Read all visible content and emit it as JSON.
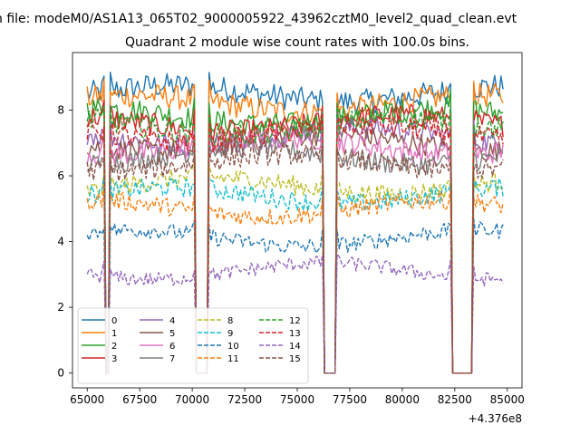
{
  "figure": {
    "suptitle": "n file: modeM0/AS1A13_065T02_9000005922_43962cztM0_level2_quad_clean.evt"
  },
  "chart_data": {
    "type": "line",
    "title": "Quadrant 2 module wise count rates with 100.0s bins.",
    "xlabel": "",
    "ylabel": "",
    "x_offset_label": "+4.376e8",
    "xlim": [
      64300,
      85700
    ],
    "ylim": [
      -0.45,
      9.75
    ],
    "xticks": [
      65000,
      67500,
      70000,
      72500,
      75000,
      77500,
      80000,
      82500,
      85000
    ],
    "xtick_labels": [
      "65000",
      "67500",
      "70000",
      "72500",
      "75000",
      "77500",
      "80000",
      "82500",
      "85000"
    ],
    "yticks": [
      0,
      2,
      4,
      6,
      8
    ],
    "ytick_labels": [
      "0",
      "2",
      "4",
      "6",
      "8"
    ],
    "grid": false,
    "legend_position": "lower-left",
    "legend_columns": 4,
    "x_range": [
      65000,
      84800
    ],
    "bin_s": 100,
    "gaps": [
      [
        65900,
        66050
      ],
      [
        70200,
        70700
      ],
      [
        76300,
        76800
      ],
      [
        82400,
        83300
      ]
    ],
    "series": [
      {
        "name": "0",
        "style": "solid",
        "color": "#1f77b4",
        "level": 8.5
      },
      {
        "name": "1",
        "style": "solid",
        "color": "#ff7f0e",
        "level": 8.2
      },
      {
        "name": "2",
        "style": "solid",
        "color": "#2ca02c",
        "level": 7.8
      },
      {
        "name": "3",
        "style": "solid",
        "color": "#d62728",
        "level": 7.6
      },
      {
        "name": "4",
        "style": "solid",
        "color": "#9467bd",
        "level": 7.2
      },
      {
        "name": "5",
        "style": "solid",
        "color": "#8c564b",
        "level": 7.0
      },
      {
        "name": "6",
        "style": "solid",
        "color": "#e377c2",
        "level": 6.9
      },
      {
        "name": "7",
        "style": "solid",
        "color": "#7f7f7f",
        "level": 6.6
      },
      {
        "name": "8",
        "style": "dashed",
        "color": "#bcbd22",
        "level": 5.7
      },
      {
        "name": "9",
        "style": "dashed",
        "color": "#17becf",
        "level": 5.4
      },
      {
        "name": "10",
        "style": "dashed",
        "color": "#1f77b4",
        "level": 4.1
      },
      {
        "name": "11",
        "style": "dashed",
        "color": "#ff7f0e",
        "level": 5.0
      },
      {
        "name": "12",
        "style": "dashed",
        "color": "#2ca02c",
        "level": 7.5
      },
      {
        "name": "13",
        "style": "dashed",
        "color": "#d62728",
        "level": 7.3
      },
      {
        "name": "14",
        "style": "dashed",
        "color": "#9467bd",
        "level": 3.1
      },
      {
        "name": "15",
        "style": "dashed",
        "color": "#8c564b",
        "level": 6.4
      }
    ]
  }
}
